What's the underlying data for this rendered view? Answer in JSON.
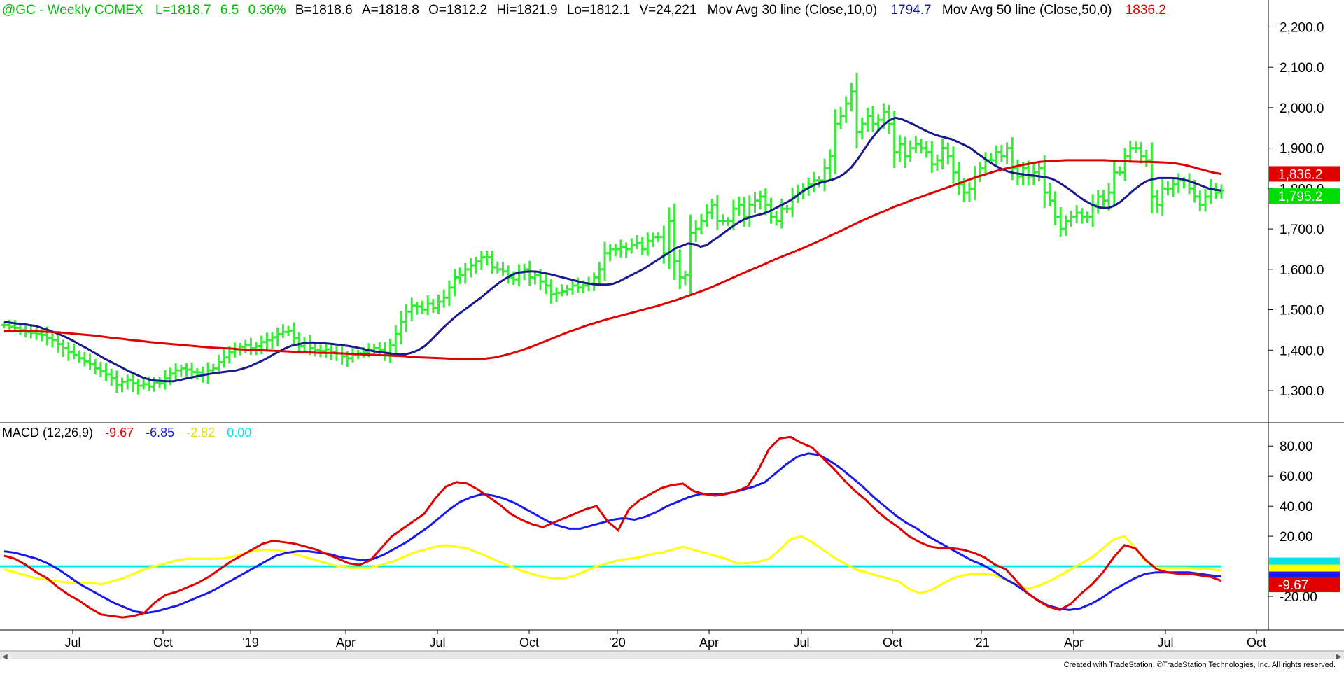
{
  "header": {
    "symbol": "@GC - Weekly  COMEX",
    "last": "L=1818.7",
    "change": "6.5",
    "change_pct": "0.36%",
    "bid": "B=1818.6",
    "ask": "A=1818.8",
    "open": "O=1812.2",
    "high": "Hi=1821.9",
    "low": "Lo=1812.1",
    "volume": "V=24,221",
    "ma30_label": "Mov Avg 30 line (Close,10,0)",
    "ma30_value": "1794.7",
    "ma50_label": "Mov Avg 50 line (Close,50,0)",
    "ma50_value": "1836.2",
    "green_color": "#00c000",
    "blue_color": "#1a1a8c",
    "red_color": "#e00000"
  },
  "macd_header": {
    "label": "MACD (12,26,9)",
    "macd": "-9.67",
    "signal": "-6.85",
    "hist": "-2.82",
    "zero": "0.00"
  },
  "footer": "Created with TradeStation. ©TradeStation Technologies, Inc. All rights reserved.",
  "chart_data": [
    {
      "type": "bar",
      "ohlc": true,
      "y_ticks": [
        "2,200.0",
        "2,100.0",
        "2,000.0",
        "1,900.0",
        "1,800.0",
        "1,700.0",
        "1,600.0",
        "1,500.0",
        "1,400.0",
        "1,300.0"
      ],
      "y_tick_values": [
        2200,
        2100,
        2000,
        1900,
        1800,
        1700,
        1600,
        1500,
        1400,
        1300
      ],
      "ylim": [
        1255,
        2225
      ],
      "price_tags": [
        {
          "label": "1,836.2",
          "value": 1836.2,
          "color": "#e00000"
        },
        {
          "label": "1,795.2",
          "value": 1795.2,
          "color": "#00dd00"
        }
      ],
      "bar_color": "#33ee33",
      "closes": [
        1462,
        1458,
        1455,
        1450,
        1445,
        1443,
        1440,
        1438,
        1430,
        1425,
        1415,
        1405,
        1396,
        1388,
        1380,
        1372,
        1365,
        1355,
        1348,
        1340,
        1330,
        1315,
        1322,
        1326,
        1318,
        1312,
        1316,
        1310,
        1320,
        1318,
        1330,
        1342,
        1350,
        1355,
        1352,
        1346,
        1345,
        1340,
        1350,
        1355,
        1370,
        1382,
        1395,
        1402,
        1408,
        1412,
        1405,
        1410,
        1420,
        1425,
        1432,
        1440,
        1445,
        1448,
        1430,
        1410,
        1418,
        1405,
        1400,
        1398,
        1402,
        1395,
        1392,
        1385,
        1380,
        1388,
        1392,
        1395,
        1400,
        1405,
        1400,
        1390,
        1412,
        1440,
        1470,
        1495,
        1510,
        1508,
        1500,
        1515,
        1505,
        1520,
        1530,
        1555,
        1580,
        1585,
        1600,
        1610,
        1620,
        1630,
        1630,
        1605,
        1600,
        1595,
        1580,
        1575,
        1590,
        1600,
        1580,
        1585,
        1570,
        1560,
        1540,
        1542,
        1545,
        1550,
        1560,
        1555,
        1560,
        1565,
        1580,
        1600,
        1640,
        1650,
        1650,
        1655,
        1650,
        1660,
        1665,
        1650,
        1670,
        1680,
        1680,
        1640,
        1720,
        1620,
        1580,
        1585,
        1690,
        1700,
        1720,
        1740,
        1760,
        1720,
        1720,
        1720,
        1750,
        1760,
        1730,
        1760,
        1770,
        1780,
        1760,
        1730,
        1720,
        1750,
        1750,
        1780,
        1790,
        1800,
        1810,
        1820,
        1820,
        1850,
        1880,
        1960,
        1980,
        2010,
        2040,
        1940,
        1960,
        1980,
        1960,
        1970,
        1990,
        1960,
        1890,
        1910,
        1880,
        1900,
        1910,
        1900,
        1890,
        1860,
        1870,
        1900,
        1880,
        1840,
        1810,
        1790,
        1800,
        1830,
        1850,
        1870,
        1870,
        1890,
        1880,
        1900,
        1850,
        1830,
        1850,
        1830,
        1840,
        1850,
        1790,
        1770,
        1730,
        1700,
        1720,
        1730,
        1740,
        1730,
        1730,
        1760,
        1780,
        1770,
        1790,
        1840,
        1840,
        1880,
        1900,
        1900,
        1880,
        1870,
        1780,
        1760,
        1800,
        1800,
        1810,
        1820,
        1820,
        1800,
        1780,
        1760,
        1780,
        1800,
        1790,
        1795
      ],
      "ma10": [
        1470,
        1468,
        1466,
        1465,
        1462,
        1460,
        1455,
        1450,
        1444,
        1438,
        1431,
        1423,
        1414,
        1406,
        1397,
        1388,
        1379,
        1371,
        1363,
        1355,
        1347,
        1340,
        1333,
        1328,
        1325,
        1324,
        1323,
        1323,
        1326,
        1330,
        1333,
        1336,
        1339,
        1342,
        1344,
        1346,
        1348,
        1350,
        1354,
        1359,
        1366,
        1373,
        1381,
        1390,
        1398,
        1406,
        1412,
        1415,
        1418,
        1419,
        1418,
        1417,
        1416,
        1414,
        1412,
        1410,
        1407,
        1404,
        1400,
        1397,
        1395,
        1393,
        1391,
        1390,
        1390,
        1394,
        1400,
        1410,
        1424,
        1440,
        1456,
        1470,
        1484,
        1496,
        1507,
        1519,
        1530,
        1543,
        1556,
        1568,
        1578,
        1587,
        1592,
        1594,
        1595,
        1594,
        1591,
        1588,
        1584,
        1580,
        1576,
        1572,
        1568,
        1565,
        1563,
        1562,
        1562,
        1564,
        1570,
        1578,
        1586,
        1594,
        1602,
        1612,
        1622,
        1632,
        1642,
        1652,
        1658,
        1664,
        1662,
        1656,
        1660,
        1672,
        1682,
        1694,
        1705,
        1716,
        1724,
        1730,
        1734,
        1738,
        1744,
        1752,
        1760,
        1768,
        1778,
        1790,
        1800,
        1808,
        1814,
        1818,
        1822,
        1828,
        1838,
        1852,
        1872,
        1895,
        1918,
        1938,
        1955,
        1968,
        1975,
        1972,
        1965,
        1958,
        1950,
        1942,
        1935,
        1930,
        1926,
        1922,
        1915,
        1908,
        1900,
        1888,
        1877,
        1866,
        1856,
        1848,
        1842,
        1838,
        1836,
        1834,
        1832,
        1830,
        1828,
        1824,
        1816,
        1806,
        1795,
        1783,
        1772,
        1763,
        1756,
        1752,
        1752,
        1758,
        1768,
        1782,
        1796,
        1808,
        1818,
        1823,
        1826,
        1826,
        1826,
        1825,
        1822,
        1818,
        1812,
        1806,
        1800,
        1797,
        1795
      ],
      "ma50": [
        1447,
        1447,
        1447,
        1447,
        1446,
        1445,
        1444,
        1442,
        1440,
        1438,
        1436,
        1433,
        1430,
        1428,
        1425,
        1423,
        1420,
        1418,
        1416,
        1414,
        1412,
        1410,
        1408,
        1406,
        1405,
        1404,
        1402,
        1401,
        1400,
        1399,
        1398,
        1397,
        1396,
        1395,
        1394,
        1393,
        1393,
        1392,
        1391,
        1390,
        1389,
        1388,
        1387,
        1386,
        1385,
        1383,
        1382,
        1381,
        1380,
        1379,
        1378,
        1378,
        1378,
        1379,
        1382,
        1387,
        1393,
        1400,
        1408,
        1417,
        1426,
        1435,
        1444,
        1452,
        1460,
        1467,
        1474,
        1480,
        1486,
        1492,
        1498,
        1504,
        1510,
        1517,
        1524,
        1532,
        1540,
        1548,
        1557,
        1567,
        1577,
        1587,
        1597,
        1606,
        1616,
        1626,
        1635,
        1644,
        1653,
        1663,
        1673,
        1684,
        1694,
        1705,
        1716,
        1726,
        1736,
        1745,
        1755,
        1763,
        1772,
        1780,
        1788,
        1796,
        1804,
        1812,
        1820,
        1828,
        1835,
        1842,
        1848,
        1853,
        1858,
        1862,
        1866,
        1868,
        1869,
        1870,
        1870,
        1870,
        1870,
        1870,
        1869,
        1868,
        1867,
        1866,
        1866,
        1865,
        1864,
        1862,
        1858,
        1852,
        1846,
        1840,
        1836
      ]
    },
    {
      "type": "line",
      "title": "MACD (12,26,9)",
      "y_ticks": [
        "80.00",
        "60.00",
        "40.00",
        "20.00",
        "-20.00"
      ],
      "y_tick_values": [
        80,
        60,
        40,
        20,
        -20
      ],
      "ylim": [
        -40,
        88
      ],
      "zero_line_color": "#00e5ee",
      "value_tags": [
        {
          "label": "0.00",
          "value": 1.5,
          "color": "#00e5ee"
        },
        {
          "label": "-2.82",
          "value": -1.5,
          "color": "#ffff00"
        },
        {
          "label": "-6.85",
          "value": -5,
          "color": "#1a1aee"
        },
        {
          "label": "-9.67",
          "value": -9.67,
          "color": "#e00000"
        }
      ],
      "series": [
        {
          "name": "-9.67",
          "color": "#e00000",
          "values": [
            7,
            5,
            1,
            -4,
            -8,
            -14,
            -19,
            -23,
            -28,
            -32,
            -33,
            -34,
            -33,
            -31,
            -24,
            -19,
            -17,
            -14,
            -11,
            -7,
            -2,
            3,
            7,
            11,
            15,
            17,
            16,
            15,
            13,
            11,
            8,
            5,
            2,
            1,
            4,
            12,
            20,
            25,
            30,
            35,
            45,
            53,
            56,
            55,
            51,
            46,
            41,
            35,
            31,
            28,
            26,
            29,
            32,
            35,
            38,
            40,
            30,
            24,
            38,
            44,
            48,
            52,
            54,
            55,
            50,
            48,
            47,
            48,
            50,
            53,
            64,
            78,
            85,
            86,
            82,
            79,
            72,
            65,
            57,
            50,
            44,
            37,
            31,
            26,
            20,
            16,
            13,
            12,
            12,
            11,
            9,
            6,
            1,
            -2,
            -10,
            -18,
            -23,
            -27,
            -29,
            -25,
            -18,
            -12,
            -4,
            6,
            14,
            12,
            4,
            -2,
            -4,
            -5,
            -5,
            -6,
            -7,
            -9.67
          ]
        },
        {
          "name": "-6.85",
          "color": "#1a1aee",
          "values": [
            10,
            9,
            7,
            5,
            2,
            -2,
            -7,
            -12,
            -16,
            -20,
            -24,
            -27,
            -30,
            -31,
            -30,
            -28,
            -26,
            -23,
            -20,
            -17,
            -13,
            -9,
            -5,
            -1,
            3,
            7,
            9,
            10,
            10,
            9,
            8,
            6,
            5,
            4,
            5,
            8,
            12,
            16,
            21,
            26,
            32,
            38,
            43,
            46,
            48,
            47,
            45,
            42,
            38,
            34,
            30,
            27,
            25,
            25,
            27,
            29,
            31,
            32,
            31,
            33,
            36,
            40,
            43,
            46,
            48,
            48,
            48,
            49,
            51,
            53,
            56,
            62,
            68,
            73,
            75,
            74,
            70,
            65,
            59,
            53,
            46,
            40,
            34,
            29,
            25,
            20,
            16,
            12,
            8,
            4,
            1,
            -3,
            -8,
            -12,
            -17,
            -22,
            -26,
            -28,
            -29,
            -28,
            -25,
            -21,
            -16,
            -12,
            -8,
            -5,
            -4,
            -4,
            -4,
            -4,
            -5,
            -6,
            -6.85
          ]
        },
        {
          "name": "-2.82",
          "color": "#ffff00",
          "values": [
            -2,
            -4,
            -6,
            -8,
            -9,
            -10,
            -11,
            -11,
            -11,
            -12,
            -10,
            -8,
            -5,
            -2,
            0,
            2,
            4,
            5,
            5,
            5,
            5,
            6,
            8,
            10,
            11,
            11,
            10,
            8,
            6,
            4,
            2,
            0,
            -1,
            -1,
            -1,
            1,
            3,
            6,
            9,
            11,
            13,
            14,
            13,
            12,
            9,
            6,
            3,
            0,
            -3,
            -5,
            -7,
            -8,
            -8,
            -6,
            -3,
            0,
            2,
            4,
            5,
            6,
            8,
            9,
            11,
            13,
            11,
            9,
            7,
            5,
            2,
            2,
            3,
            5,
            11,
            18,
            20,
            16,
            11,
            6,
            2,
            -2,
            -4,
            -6,
            -8,
            -10,
            -15,
            -18,
            -16,
            -12,
            -8,
            -6,
            -5,
            -5,
            -6,
            -9,
            -12,
            -15,
            -13,
            -10,
            -6,
            -2,
            2,
            6,
            12,
            18,
            20,
            12,
            3,
            -1,
            -1,
            -1,
            -1,
            -2,
            -2,
            -2.82
          ]
        }
      ]
    }
  ],
  "x_labels": [
    "Jul",
    "Oct",
    "'19",
    "Apr",
    "Jul",
    "Oct",
    "'20",
    "Apr",
    "Jul",
    "Oct",
    "'21",
    "Apr",
    "Jul",
    "Oct"
  ]
}
